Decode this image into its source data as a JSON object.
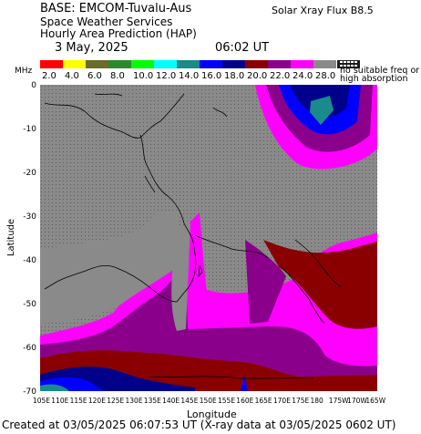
{
  "header": {
    "line1": "BASE: EMCOM-Tuvalu-Aus",
    "line2": "Space Weather Services",
    "line3": "Hourly Area Prediction (HAP)",
    "date": "3 May, 2025",
    "time": "06:02 UT",
    "flux": "Solar Xray Flux B8.5"
  },
  "legend": {
    "unit": "MHz",
    "entries": [
      {
        "label": "2.0",
        "color": "#ff0000"
      },
      {
        "label": "4.0",
        "color": "#ffff00"
      },
      {
        "label": "6.0",
        "color": "#6b6b2a"
      },
      {
        "label": "8.0",
        "color": "#2a8a2a"
      },
      {
        "label": "10.0",
        "color": "#00ff00"
      },
      {
        "label": "12.0",
        "color": "#00ffff"
      },
      {
        "label": "14.0",
        "color": "#1a8a8a"
      },
      {
        "label": "16.0",
        "color": "#0000ff"
      },
      {
        "label": "18.0",
        "color": "#00008a"
      },
      {
        "label": "20.0",
        "color": "#8a0000"
      },
      {
        "label": "22.0",
        "color": "#8a008a"
      },
      {
        "label": "24.0",
        "color": "#ff00ff"
      },
      {
        "label": "28.0",
        "color": "#8a8a8a"
      }
    ],
    "no_freq_line1": "no suitable freq or",
    "no_freq_line2": "high absorption"
  },
  "axes": {
    "ylabel": "Latitude",
    "xlabel": "Longitude",
    "lat_ticks": [
      "0",
      "-10",
      "-20",
      "-30",
      "-40",
      "-50",
      "-60",
      "-70"
    ],
    "lon_ticks": [
      "105E",
      "110E",
      "115E",
      "120E",
      "125E",
      "130E",
      "135E",
      "140E",
      "145E",
      "150E",
      "155E",
      "160E",
      "165E",
      "170E",
      "175E",
      "180",
      "175W",
      "170W",
      "165W"
    ]
  },
  "footer": "Created at 03/05/2025 06:07:53 UT (X-ray data at 03/05/2025 0602 UT)"
}
